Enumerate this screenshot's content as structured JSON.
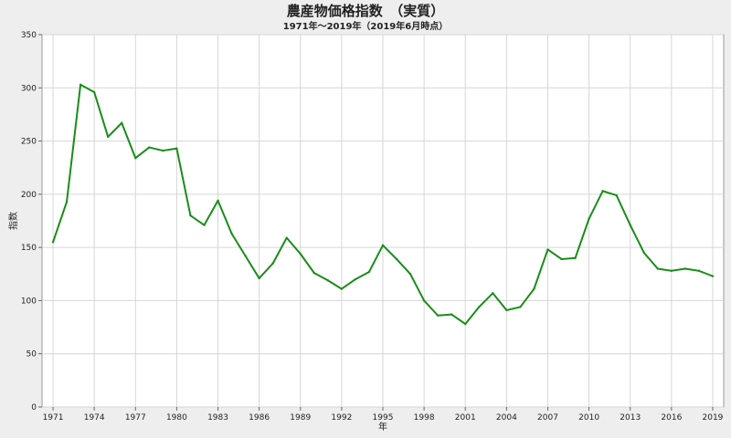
{
  "chart_data": {
    "type": "line",
    "title": "農産物価格指数　（実質）",
    "subtitle": "1971年～2019年（2019年6月時点）",
    "xlabel": "年",
    "ylabel": "指数",
    "xlim": [
      1970.2,
      2019.8
    ],
    "ylim": [
      0,
      350
    ],
    "yticks": [
      0,
      50,
      100,
      150,
      200,
      250,
      300,
      350
    ],
    "xticks": [
      1971,
      1974,
      1977,
      1980,
      1983,
      1986,
      1989,
      1992,
      1995,
      1998,
      2001,
      2004,
      2007,
      2010,
      2013,
      2016,
      2019
    ],
    "grid": true,
    "colors": {
      "background": "#eeeeee",
      "plot_background": "#ffffff",
      "series": "#1a8c1a",
      "grid": "#d6d6d6"
    },
    "x": [
      1971,
      1972,
      1973,
      1974,
      1975,
      1976,
      1977,
      1978,
      1979,
      1980,
      1981,
      1982,
      1983,
      1984,
      1985,
      1986,
      1987,
      1988,
      1989,
      1990,
      1991,
      1992,
      1993,
      1994,
      1995,
      1996,
      1997,
      1998,
      1999,
      2000,
      2001,
      2002,
      2003,
      2004,
      2005,
      2006,
      2007,
      2008,
      2009,
      2010,
      2011,
      2012,
      2013,
      2014,
      2015,
      2016,
      2017,
      2018,
      2019
    ],
    "series": [
      {
        "values": [
          155,
          193,
          303,
          296,
          254,
          267,
          234,
          244,
          241,
          243,
          180,
          171,
          194,
          163,
          142,
          121,
          135,
          159,
          144,
          126,
          119,
          111,
          120,
          127,
          152,
          139,
          125,
          100,
          86,
          87,
          78,
          94,
          107,
          91,
          94,
          111,
          148,
          139,
          140,
          177,
          203,
          199,
          171,
          145,
          130,
          128,
          130,
          128,
          123
        ]
      }
    ]
  }
}
